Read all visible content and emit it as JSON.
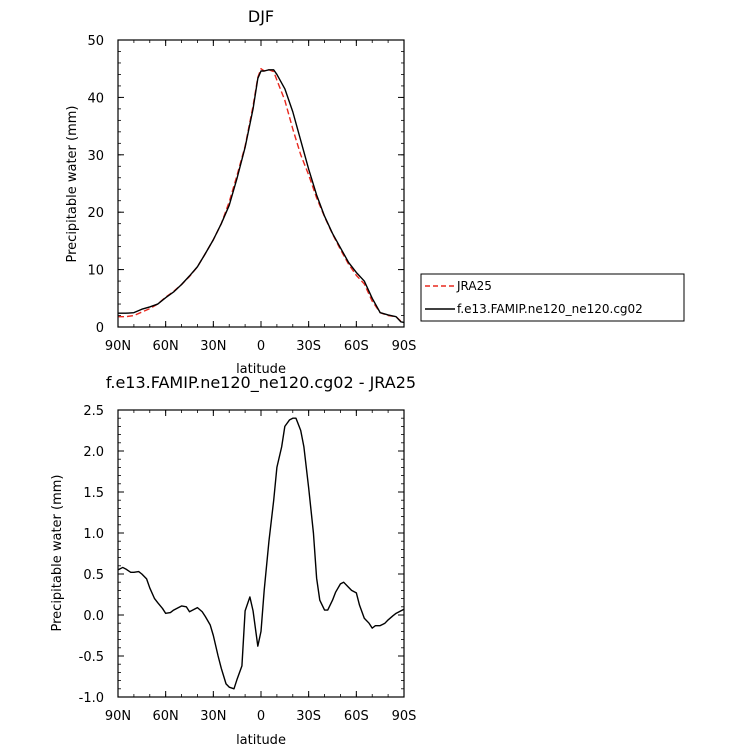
{
  "chart_data": [
    {
      "type": "line",
      "title": "DJF",
      "xlabel": "latitude",
      "ylabel": "Precipitable water (mm)",
      "xlim": [
        -90,
        90
      ],
      "ylim": [
        0,
        50
      ],
      "xticks": [
        {
          "value": -90,
          "label": "90N"
        },
        {
          "value": -60,
          "label": "60N"
        },
        {
          "value": -30,
          "label": "30N"
        },
        {
          "value": 0,
          "label": "0"
        },
        {
          "value": 30,
          "label": "30S"
        },
        {
          "value": 60,
          "label": "60S"
        },
        {
          "value": 90,
          "label": "90S"
        }
      ],
      "yticks": [
        0,
        10,
        20,
        30,
        40,
        50
      ],
      "grid": false,
      "legend_position": "right",
      "series": [
        {
          "name": "JRA25",
          "color": "#e8281e",
          "dash": "dashed",
          "x": [
            -90,
            -85,
            -80,
            -75,
            -70,
            -65,
            -60,
            -55,
            -50,
            -45,
            -40,
            -35,
            -30,
            -25,
            -20,
            -15,
            -10,
            -5,
            -2,
            0,
            2,
            5,
            8,
            10,
            15,
            20,
            25,
            30,
            35,
            40,
            45,
            50,
            55,
            60,
            65,
            70,
            75,
            80,
            85,
            88,
            90
          ],
          "y": [
            1.8,
            1.8,
            2.0,
            2.6,
            3.2,
            4.0,
            5.2,
            6.2,
            7.4,
            8.8,
            10.5,
            12.8,
            15.2,
            18.0,
            21.8,
            26.5,
            31.5,
            38.5,
            43.5,
            45.0,
            44.6,
            44.8,
            44.5,
            43.0,
            39.5,
            34.5,
            30.0,
            26.5,
            22.5,
            19.2,
            16.2,
            13.5,
            11.0,
            9.0,
            7.5,
            4.5,
            2.5,
            2.0,
            1.8,
            1.0,
            0.9
          ]
        },
        {
          "name": "f.e13.FAMIP.ne120_ne120.cg02",
          "color": "#000000",
          "dash": "solid",
          "x": [
            -90,
            -85,
            -80,
            -75,
            -70,
            -65,
            -60,
            -55,
            -50,
            -45,
            -40,
            -35,
            -30,
            -25,
            -20,
            -15,
            -10,
            -5,
            -2,
            0,
            2,
            5,
            8,
            10,
            15,
            20,
            25,
            30,
            35,
            40,
            45,
            50,
            55,
            60,
            65,
            70,
            75,
            80,
            85,
            88,
            90
          ],
          "y": [
            2.4,
            2.4,
            2.5,
            3.1,
            3.5,
            4.0,
            5.1,
            6.1,
            7.4,
            8.9,
            10.5,
            12.8,
            15.2,
            18.0,
            21.2,
            26.0,
            31.3,
            38.0,
            43.3,
            44.6,
            44.6,
            44.8,
            44.8,
            44.0,
            41.5,
            37.5,
            32.5,
            27.5,
            23.0,
            19.3,
            16.3,
            13.8,
            11.3,
            9.5,
            8.0,
            5.0,
            2.5,
            2.1,
            1.8,
            0.9,
            0.8
          ]
        }
      ]
    },
    {
      "type": "line",
      "title": "f.e13.FAMIP.ne120_ne120.cg02 - JRA25",
      "xlabel": "latitude",
      "ylabel": "Precipitable water (mm)",
      "xlim": [
        -90,
        90
      ],
      "ylim": [
        -1.0,
        2.5
      ],
      "xticks": [
        {
          "value": -90,
          "label": "90N"
        },
        {
          "value": -60,
          "label": "60N"
        },
        {
          "value": -30,
          "label": "30N"
        },
        {
          "value": 0,
          "label": "0"
        },
        {
          "value": 30,
          "label": "30S"
        },
        {
          "value": 60,
          "label": "60S"
        },
        {
          "value": 90,
          "label": "90S"
        }
      ],
      "yticks": [
        -1.0,
        -0.5,
        0.0,
        0.5,
        1.0,
        1.5,
        2.0,
        2.5
      ],
      "grid": false,
      "series": [
        {
          "color": "#000000",
          "dash": "solid",
          "x": [
            -90,
            -87,
            -85,
            -82,
            -80,
            -77,
            -75,
            -72,
            -70,
            -67,
            -65,
            -62,
            -60,
            -57,
            -55,
            -52,
            -50,
            -47,
            -45,
            -42,
            -40,
            -37,
            -35,
            -32,
            -30,
            -27,
            -25,
            -22,
            -20,
            -17,
            -15,
            -12,
            -10,
            -7,
            -5,
            -2,
            0,
            2,
            5,
            8,
            10,
            13,
            15,
            18,
            20,
            22,
            23,
            25,
            27,
            30,
            33,
            35,
            37,
            40,
            42,
            45,
            47,
            50,
            52,
            55,
            57,
            60,
            62,
            65,
            68,
            70,
            72,
            75,
            78,
            80,
            83,
            85,
            88,
            90
          ],
          "y": [
            0.55,
            0.58,
            0.56,
            0.52,
            0.52,
            0.53,
            0.5,
            0.44,
            0.33,
            0.2,
            0.15,
            0.08,
            0.02,
            0.03,
            0.06,
            0.09,
            0.11,
            0.1,
            0.04,
            0.07,
            0.09,
            0.04,
            -0.02,
            -0.12,
            -0.25,
            -0.5,
            -0.65,
            -0.84,
            -0.88,
            -0.9,
            -0.78,
            -0.62,
            0.05,
            0.22,
            0.05,
            -0.38,
            -0.2,
            0.3,
            0.9,
            1.4,
            1.8,
            2.05,
            2.3,
            2.38,
            2.4,
            2.4,
            2.35,
            2.25,
            2.05,
            1.55,
            1.0,
            0.45,
            0.18,
            0.06,
            0.06,
            0.18,
            0.28,
            0.38,
            0.4,
            0.34,
            0.3,
            0.27,
            0.12,
            -0.04,
            -0.1,
            -0.16,
            -0.13,
            -0.13,
            -0.1,
            -0.06,
            -0.01,
            0.02,
            0.05,
            0.07
          ]
        }
      ]
    }
  ]
}
